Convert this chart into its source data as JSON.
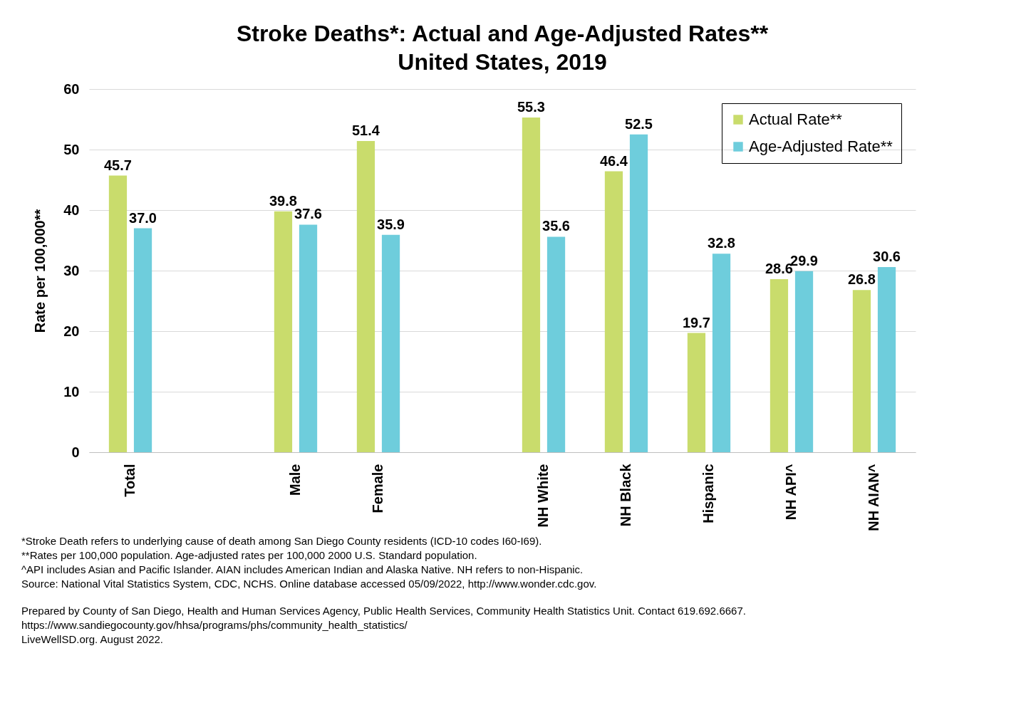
{
  "chart_data": {
    "type": "bar",
    "title": "Stroke Deaths*: Actual and Age-Adjusted Rates**",
    "subtitle": "United States, 2019",
    "ylabel": "Rate per 100,000**",
    "categories": [
      "Total",
      null,
      "Male",
      "Female",
      null,
      "NH White",
      "NH Black",
      "Hispanic",
      "NH API^",
      "NH AIAN^"
    ],
    "series": [
      {
        "name": "Actual Rate**",
        "color": "#c9dc6c",
        "values": [
          45.7,
          null,
          39.8,
          51.4,
          null,
          55.3,
          46.4,
          19.7,
          28.6,
          26.8
        ],
        "value_labels": [
          "45.7",
          null,
          "39.8",
          "51.4",
          null,
          "55.3",
          "46.4",
          "19.7",
          "28.6",
          "26.8"
        ]
      },
      {
        "name": "Age-Adjusted Rate**",
        "color": "#6ecddc",
        "values": [
          37.0,
          null,
          37.6,
          35.9,
          null,
          35.6,
          52.5,
          32.8,
          29.9,
          30.6
        ],
        "value_labels": [
          "37.0",
          null,
          "37.6",
          "35.9",
          null,
          "35.6",
          "52.5",
          "32.8",
          "29.9",
          "30.6"
        ]
      }
    ],
    "ylim": [
      0,
      60
    ],
    "yticks": [
      0,
      10,
      20,
      30,
      40,
      50,
      60
    ],
    "grid": "y",
    "legend": "top right",
    "annotations": [
      "*Stroke Death refers to underlying cause of death among San Diego County residents (ICD-10 codes I60-I69).",
      "**Rates per 100,000 population. Age-adjusted rates per 100,000 2000 U.S. Standard population.",
      "^API includes Asian and Pacific Islander. AIAN includes American Indian and Alaska Native. NH refers to non-Hispanic.",
      "Source: National Vital Statistics System, CDC, NCHS. Online database accessed 05/09/2022, http://www.wonder.cdc.gov.",
      "Prepared by County of San Diego, Health and Human Services Agency, Public Health Services, Community Health Statistics Unit. Contact 619.692.6667.",
      "https://www.sandiegocounty.gov/hhsa/programs/phs/community_health_statistics/",
      "LiveWellSD.org. August 2022."
    ]
  }
}
